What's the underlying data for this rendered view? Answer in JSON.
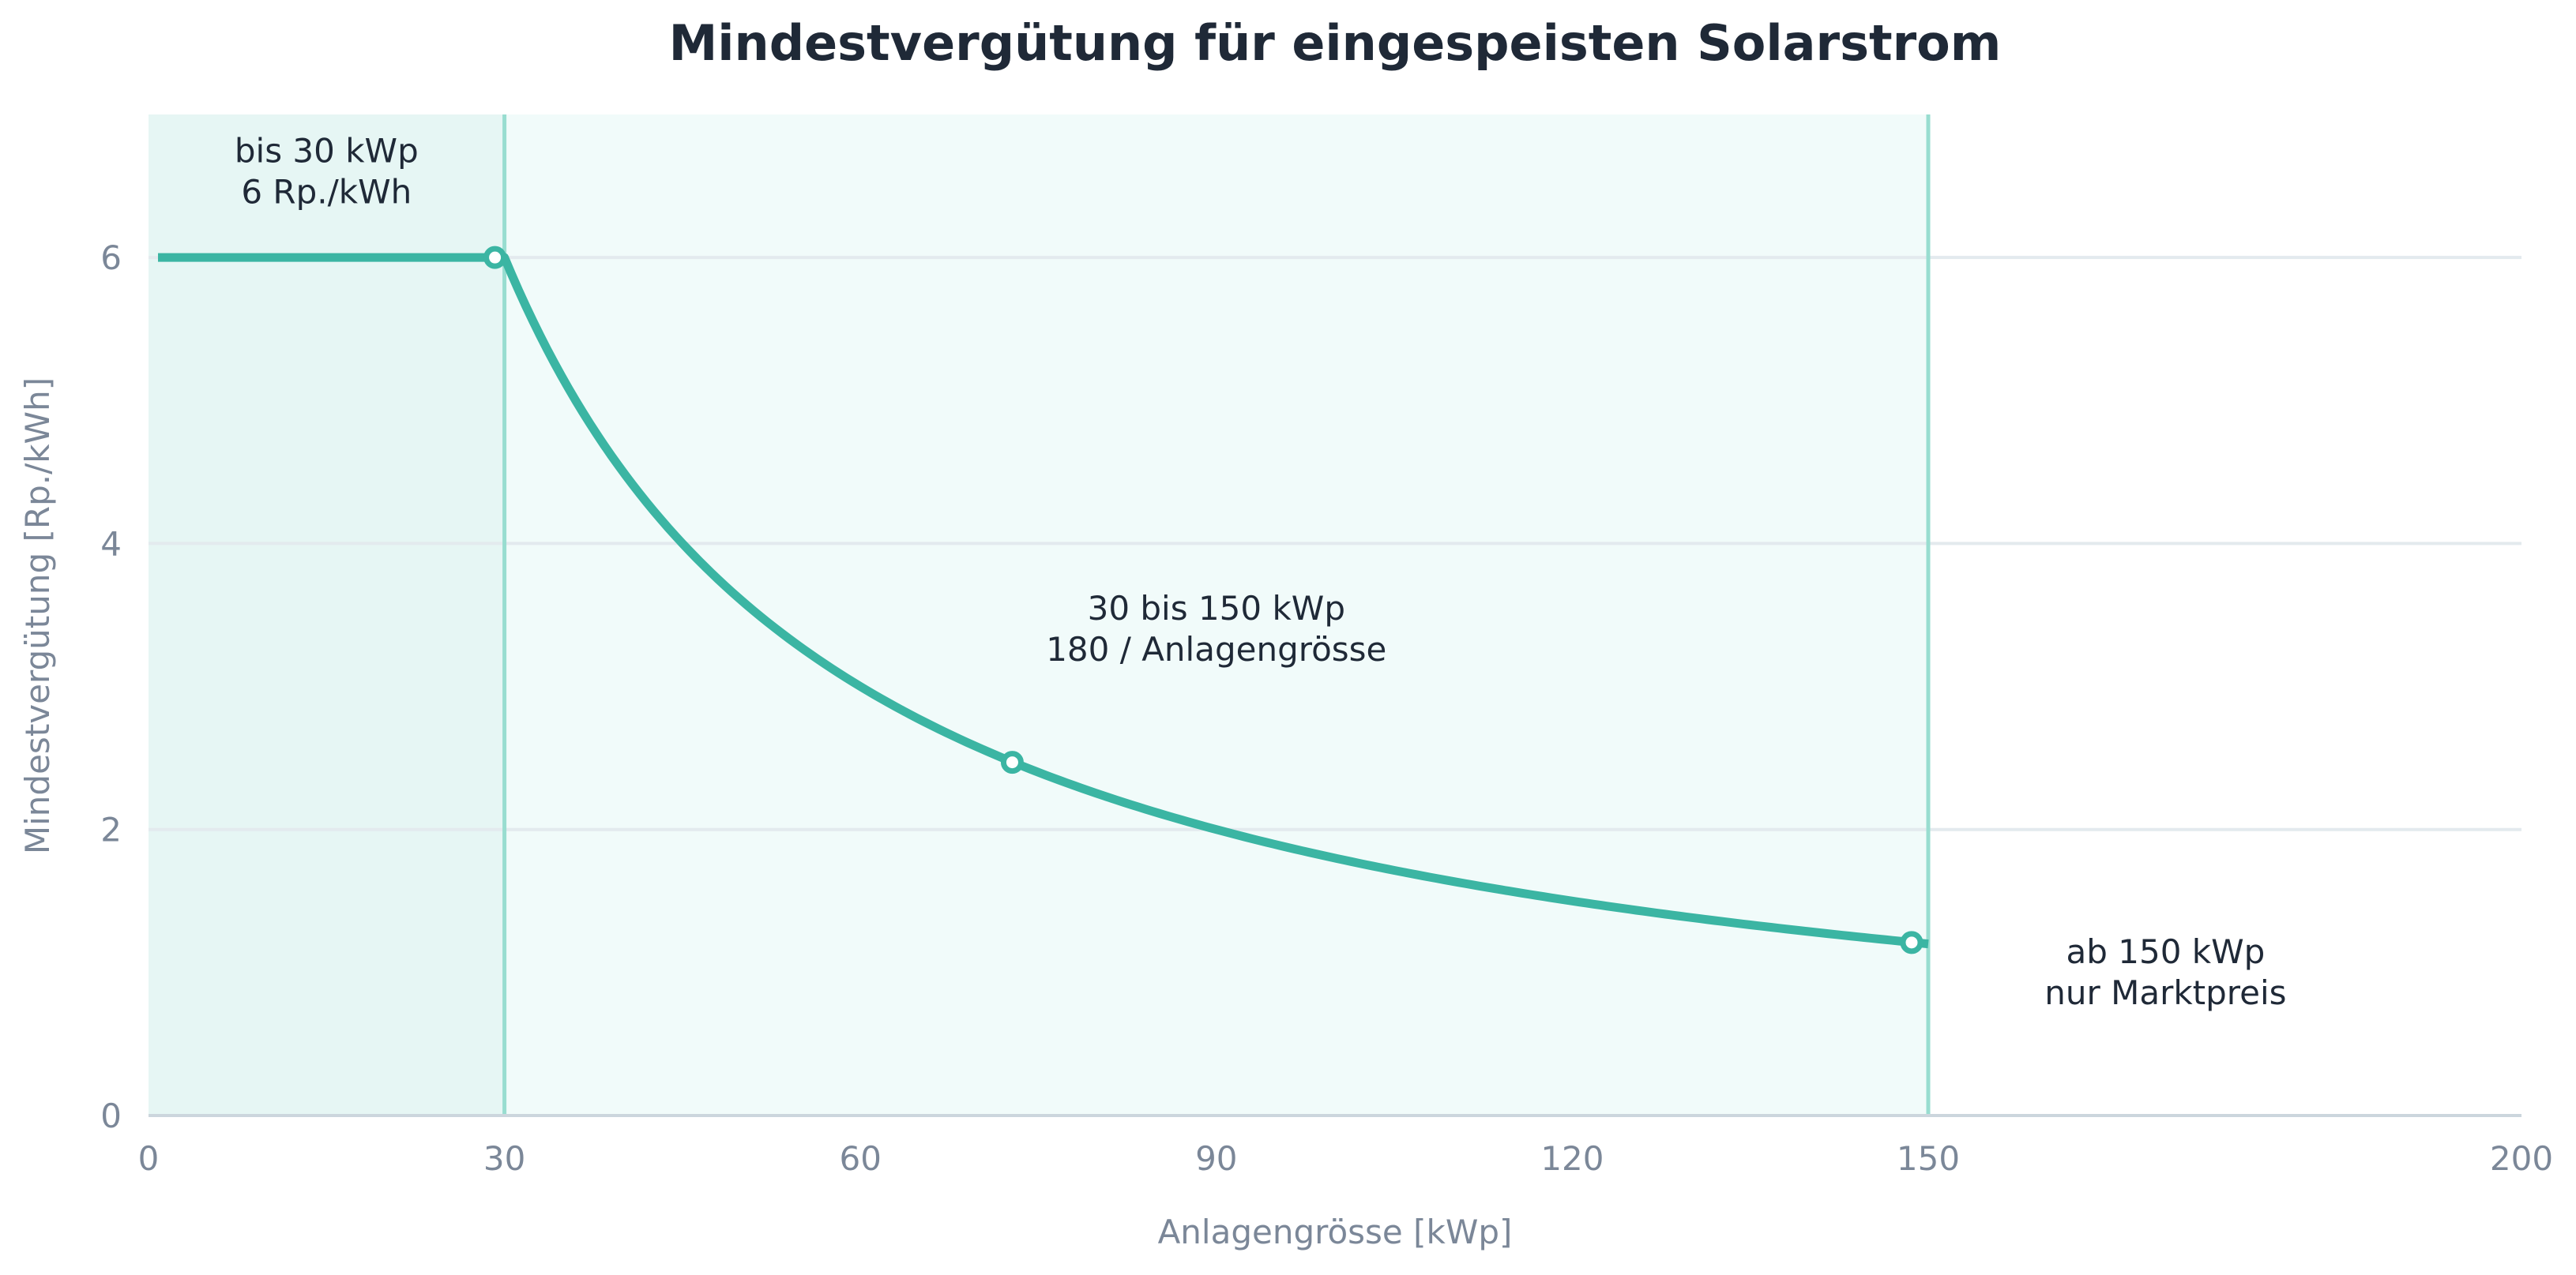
{
  "chart_data": {
    "type": "line",
    "title": "Mindestvergütung für eingespeisten Solarstrom",
    "xlabel": "Anlagengrösse [kWp]",
    "ylabel": "Mindestvergütung [Rp./kWh]",
    "xlim": [
      0,
      200
    ],
    "ylim": [
      0,
      7
    ],
    "xticks": [
      0,
      30,
      60,
      90,
      120,
      150,
      200
    ],
    "yticks": [
      0,
      2,
      4,
      6
    ],
    "grid": "horizontal",
    "line_color": "#3bb5a3",
    "regions": [
      {
        "x_start": 0,
        "x_end": 30,
        "color": "#e6f6f4"
      },
      {
        "x_start": 30,
        "x_end": 150,
        "color": "#f1fbfa"
      }
    ],
    "boundary_lines": [
      30,
      150
    ],
    "series": [
      {
        "segments": [
          {
            "x_start": 0.8,
            "x_end": 30,
            "formula": "constant",
            "value": 6
          },
          {
            "x_start": 30,
            "x_end": 150,
            "formula": "180 / x"
          }
        ],
        "markers": [
          {
            "x": 29.2,
            "y": 6
          },
          {
            "x": 72.8,
            "y": 2.47
          },
          {
            "x": 148.6,
            "y": 1.21
          }
        ]
      }
    ],
    "annotations": [
      {
        "lines": [
          "bis 30 kWp",
          "6 Rp./kWh"
        ],
        "x": 15,
        "y": 6.6
      },
      {
        "lines": [
          "30 bis 150 kWp",
          "180 / Anlagengrösse"
        ],
        "x": 90,
        "y": 3.4
      },
      {
        "lines": [
          "ab 150 kWp",
          "nur Marktpreis"
        ],
        "x": 170,
        "y": 1.0
      }
    ]
  }
}
